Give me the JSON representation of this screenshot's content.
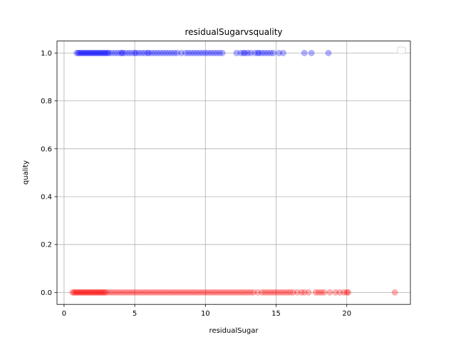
{
  "chart_data": {
    "type": "scatter",
    "title": "residualSugarvsquality",
    "xlabel": "residualSugar",
    "ylabel": "quality",
    "xlim": [
      -0.5,
      24.5
    ],
    "ylim": [
      -0.05,
      1.05
    ],
    "xticks": [
      0,
      5,
      10,
      15,
      20
    ],
    "xtick_labels": [
      "0",
      "5",
      "10",
      "15",
      "20"
    ],
    "yticks": [
      0.0,
      0.2,
      0.4,
      0.6,
      0.8,
      1.0
    ],
    "ytick_labels": [
      "0.0",
      "0.2",
      "0.4",
      "0.6",
      "0.8",
      "1.0"
    ],
    "grid": true,
    "legend": "upper-right (empty)",
    "series": [
      {
        "color": "#0000ff",
        "alpha": 0.3,
        "y": 1,
        "x": [
          0.9,
          1.0,
          1.1,
          1.2,
          1.3,
          1.4,
          1.5,
          1.6,
          1.7,
          1.8,
          1.9,
          2.0,
          2.1,
          2.2,
          2.3,
          2.4,
          2.5,
          2.6,
          2.7,
          2.8,
          2.9,
          3.0,
          3.1,
          3.2,
          3.4,
          3.6,
          3.8,
          4.0,
          4.1,
          4.2,
          4.4,
          4.6,
          4.8,
          5.0,
          5.1,
          5.3,
          5.5,
          5.7,
          5.9,
          6.0,
          6.2,
          6.4,
          6.6,
          6.8,
          7.0,
          7.2,
          7.4,
          7.6,
          7.8,
          8.0,
          8.3,
          8.6,
          8.8,
          9.0,
          9.2,
          9.4,
          9.6,
          9.8,
          10.0,
          10.2,
          10.4,
          10.6,
          10.8,
          11.0,
          11.2,
          12.2,
          12.5,
          12.7,
          12.8,
          13.0,
          13.2,
          13.5,
          13.7,
          13.8,
          14.0,
          14.2,
          14.4,
          14.6,
          14.8,
          15.2,
          15.5,
          17.0,
          17.5,
          18.7
        ]
      },
      {
        "color": "#ff0000",
        "alpha": 0.3,
        "y": 0,
        "x": [
          0.6,
          0.7,
          0.8,
          0.9,
          1.0,
          1.1,
          1.2,
          1.3,
          1.4,
          1.5,
          1.6,
          1.7,
          1.8,
          1.9,
          2.0,
          2.1,
          2.2,
          2.3,
          2.4,
          2.5,
          2.6,
          2.7,
          2.8,
          2.9,
          3.0,
          3.2,
          3.4,
          3.6,
          3.8,
          4.0,
          4.2,
          4.4,
          4.6,
          4.8,
          5.0,
          5.2,
          5.4,
          5.6,
          5.8,
          6.0,
          6.2,
          6.4,
          6.6,
          6.8,
          7.0,
          7.2,
          7.4,
          7.6,
          7.8,
          8.0,
          8.2,
          8.4,
          8.6,
          8.8,
          9.0,
          9.2,
          9.4,
          9.6,
          9.8,
          10.0,
          10.2,
          10.4,
          10.6,
          10.8,
          11.0,
          11.2,
          11.4,
          11.6,
          11.8,
          12.0,
          12.2,
          12.4,
          12.6,
          12.8,
          13.0,
          13.2,
          13.4,
          13.7,
          14.0,
          14.2,
          14.4,
          14.6,
          14.8,
          15.0,
          15.2,
          15.4,
          15.6,
          15.8,
          16.0,
          16.2,
          16.5,
          16.8,
          17.0,
          17.3,
          17.8,
          18.0,
          18.2,
          18.4,
          18.8,
          19.2,
          19.5,
          19.8,
          20.0,
          20.1,
          23.4
        ]
      }
    ]
  }
}
